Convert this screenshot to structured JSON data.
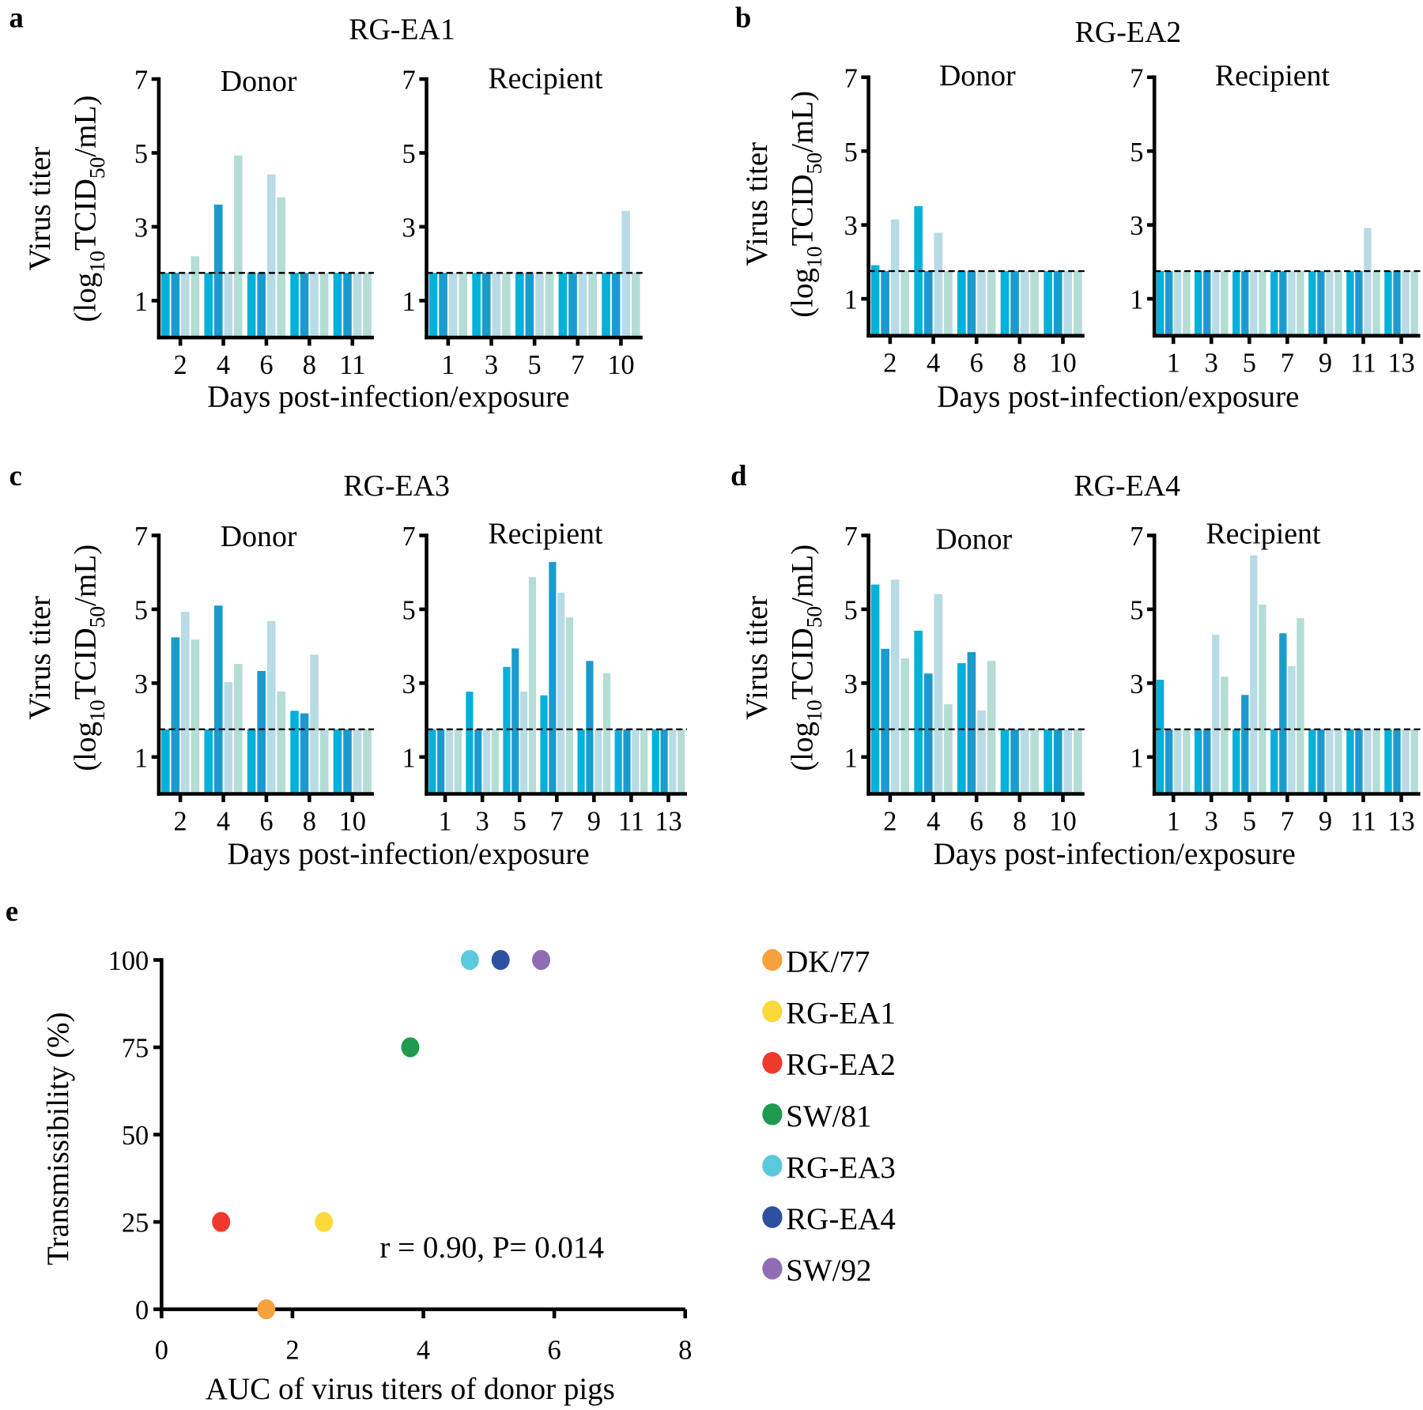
{
  "panels": [
    {
      "letter": "a",
      "title": "RG-EA1",
      "ylabel_line1": "Virus titer",
      "ylabel_parts": [
        "(log",
        "10",
        "TCID",
        "50",
        "/mL)"
      ],
      "xlabel": "Days post-infection/exposure"
    },
    {
      "letter": "b",
      "title": "RG-EA2",
      "ylabel_line1": "Virus titer",
      "ylabel_parts": [
        "(log",
        "10",
        "TCID",
        "50",
        "/mL)"
      ],
      "xlabel": "Days post-infection/exposure"
    },
    {
      "letter": "c",
      "title": "RG-EA3",
      "ylabel_line1": "Virus titer",
      "ylabel_parts": [
        "(log",
        "10",
        "TCID",
        "50",
        "/mL)"
      ],
      "xlabel": "Days post-infection/exposure"
    },
    {
      "letter": "d",
      "title": "RG-EA4",
      "ylabel_line1": "Virus titer",
      "ylabel_parts": [
        "(log",
        "10",
        "TCID",
        "50",
        "/mL)"
      ],
      "xlabel": "Days post-infection/exposure"
    },
    {
      "letter": "e"
    }
  ],
  "colors": {
    "bars": [
      "#00b1d9",
      "#1b9bcd",
      "#b8dbe6",
      "#b3ddd5"
    ],
    "reference_line": "#000000"
  },
  "chart_data": [
    {
      "type": "bar",
      "panel": "a",
      "subtitle": "Donor",
      "categories": [
        "2",
        "4",
        "6",
        "8",
        "11"
      ],
      "values": [
        [
          1.75,
          1.75,
          1.75,
          2.2
        ],
        [
          1.75,
          3.6,
          1.75,
          4.93
        ],
        [
          1.75,
          1.75,
          4.42,
          3.8
        ],
        [
          1.75,
          1.75,
          1.75,
          1.75
        ],
        [
          1.75,
          1.75,
          1.75,
          1.75
        ]
      ],
      "ylim": [
        0,
        7
      ],
      "yticks": [
        "1",
        "3",
        "5",
        "7"
      ],
      "reference_line": 1.75
    },
    {
      "type": "bar",
      "panel": "a",
      "subtitle": "Recipient",
      "categories": [
        "1",
        "3",
        "5",
        "7",
        "10"
      ],
      "values": [
        [
          1.75,
          1.75,
          1.75,
          1.75
        ],
        [
          1.75,
          1.75,
          1.75,
          1.75
        ],
        [
          1.75,
          1.75,
          1.75,
          1.75
        ],
        [
          1.75,
          1.75,
          1.75,
          1.75
        ],
        [
          1.75,
          1.75,
          3.43,
          1.75
        ]
      ],
      "ylim": [
        0,
        7
      ],
      "yticks": [
        "1",
        "3",
        "5",
        "7"
      ],
      "reference_line": 1.75
    },
    {
      "type": "bar",
      "panel": "b",
      "subtitle": "Donor",
      "categories": [
        "2",
        "4",
        "6",
        "8",
        "10"
      ],
      "values": [
        [
          1.91,
          1.75,
          3.15,
          1.75
        ],
        [
          3.51,
          1.75,
          2.79,
          1.75
        ],
        [
          1.75,
          1.75,
          1.75,
          1.75
        ],
        [
          1.75,
          1.75,
          1.75,
          1.75
        ],
        [
          1.75,
          1.75,
          1.75,
          1.75
        ]
      ],
      "ylim": [
        0,
        7
      ],
      "yticks": [
        "1",
        "3",
        "5",
        "7"
      ],
      "reference_line": 1.75
    },
    {
      "type": "bar",
      "panel": "b",
      "subtitle": "Recipient",
      "categories": [
        "1",
        "3",
        "5",
        "7",
        "9",
        "11",
        "13"
      ],
      "values": [
        [
          1.75,
          1.75,
          1.75,
          1.75
        ],
        [
          1.75,
          1.75,
          1.75,
          1.75
        ],
        [
          1.75,
          1.75,
          1.75,
          1.75
        ],
        [
          1.75,
          1.75,
          1.75,
          1.75
        ],
        [
          1.75,
          1.75,
          1.75,
          1.75
        ],
        [
          1.75,
          1.75,
          2.92,
          1.75
        ],
        [
          1.75,
          1.75,
          1.75,
          1.75
        ]
      ],
      "ylim": [
        0,
        7
      ],
      "yticks": [
        "1",
        "3",
        "5",
        "7"
      ],
      "reference_line": 1.75
    },
    {
      "type": "bar",
      "panel": "c",
      "subtitle": "Donor",
      "categories": [
        "2",
        "4",
        "6",
        "8",
        "10"
      ],
      "values": [
        [
          1.75,
          4.24,
          4.93,
          4.18
        ],
        [
          1.75,
          5.1,
          3.03,
          3.52
        ],
        [
          1.75,
          3.33,
          4.68,
          2.77
        ],
        [
          2.25,
          2.18,
          3.77,
          1.75
        ],
        [
          1.75,
          1.75,
          1.75,
          1.75
        ]
      ],
      "ylim": [
        0,
        7
      ],
      "yticks": [
        "1",
        "3",
        "5",
        "7"
      ],
      "reference_line": 1.75
    },
    {
      "type": "bar",
      "panel": "c",
      "subtitle": "Recipient",
      "categories": [
        "1",
        "3",
        "5",
        "7",
        "9",
        "11",
        "13"
      ],
      "values": [
        [
          1.75,
          1.75,
          1.75,
          1.75
        ],
        [
          2.77,
          1.75,
          1.75,
          1.75
        ],
        [
          3.44,
          3.94,
          2.77,
          5.87
        ],
        [
          2.67,
          6.28,
          5.45,
          4.78
        ],
        [
          1.75,
          3.6,
          1.75,
          3.27
        ],
        [
          1.75,
          1.75,
          1.75,
          1.75
        ],
        [
          1.75,
          1.75,
          1.75,
          1.75
        ]
      ],
      "ylim": [
        0,
        7
      ],
      "yticks": [
        "1",
        "3",
        "5",
        "7"
      ],
      "reference_line": 1.75
    },
    {
      "type": "bar",
      "panel": "d",
      "subtitle": "Donor",
      "categories": [
        "2",
        "4",
        "6",
        "8",
        "10"
      ],
      "values": [
        [
          5.67,
          3.93,
          5.8,
          3.67
        ],
        [
          4.42,
          3.26,
          5.41,
          2.43
        ],
        [
          3.54,
          3.84,
          2.26,
          3.6
        ],
        [
          1.75,
          1.75,
          1.75,
          1.75
        ],
        [
          1.75,
          1.75,
          1.75,
          1.75
        ]
      ],
      "ylim": [
        0,
        7
      ],
      "yticks": [
        "1",
        "3",
        "5",
        "7"
      ],
      "reference_line": 1.75
    },
    {
      "type": "bar",
      "panel": "d",
      "subtitle": "Recipient",
      "categories": [
        "1",
        "3",
        "5",
        "7",
        "9",
        "11",
        "13"
      ],
      "values": [
        [
          3.09,
          1.75,
          1.75,
          1.75
        ],
        [
          1.75,
          1.75,
          4.31,
          3.18
        ],
        [
          1.75,
          2.68,
          6.46,
          5.13
        ],
        [
          1.75,
          4.35,
          3.46,
          4.76
        ],
        [
          1.75,
          1.75,
          1.75,
          1.75
        ],
        [
          1.75,
          1.75,
          1.75,
          1.75
        ],
        [
          1.75,
          1.75,
          1.75,
          1.75
        ]
      ],
      "ylim": [
        0,
        7
      ],
      "yticks": [
        "1",
        "3",
        "5",
        "7"
      ],
      "reference_line": 1.75
    },
    {
      "type": "scatter",
      "panel": "e",
      "xlabel": "AUC of virus titers of donor pigs",
      "ylabel": "Transmissibility (%)",
      "xlim": [
        0,
        8
      ],
      "ylim": [
        0,
        100
      ],
      "xticks": [
        "0",
        "2",
        "4",
        "6",
        "8"
      ],
      "yticks": [
        "0",
        "25",
        "50",
        "75",
        "100"
      ],
      "annotation": "r = 0.90, P= 0.014",
      "legend_position": "right",
      "series": [
        {
          "name": "DK/77",
          "x": 1.6,
          "y": 0,
          "color": "#f5a13d"
        },
        {
          "name": "RG-EA1",
          "x": 2.48,
          "y": 25,
          "color": "#fad93a"
        },
        {
          "name": "RG-EA2",
          "x": 0.91,
          "y": 25,
          "color": "#ee3a2d"
        },
        {
          "name": "SW/81",
          "x": 3.8,
          "y": 75,
          "color": "#1e9b4f"
        },
        {
          "name": "RG-EA3",
          "x": 4.71,
          "y": 100,
          "color": "#5cc8dc"
        },
        {
          "name": "RG-EA4",
          "x": 5.18,
          "y": 100,
          "color": "#2e50a1"
        },
        {
          "name": "SW/92",
          "x": 5.8,
          "y": 100,
          "color": "#8f6db5"
        }
      ]
    }
  ]
}
